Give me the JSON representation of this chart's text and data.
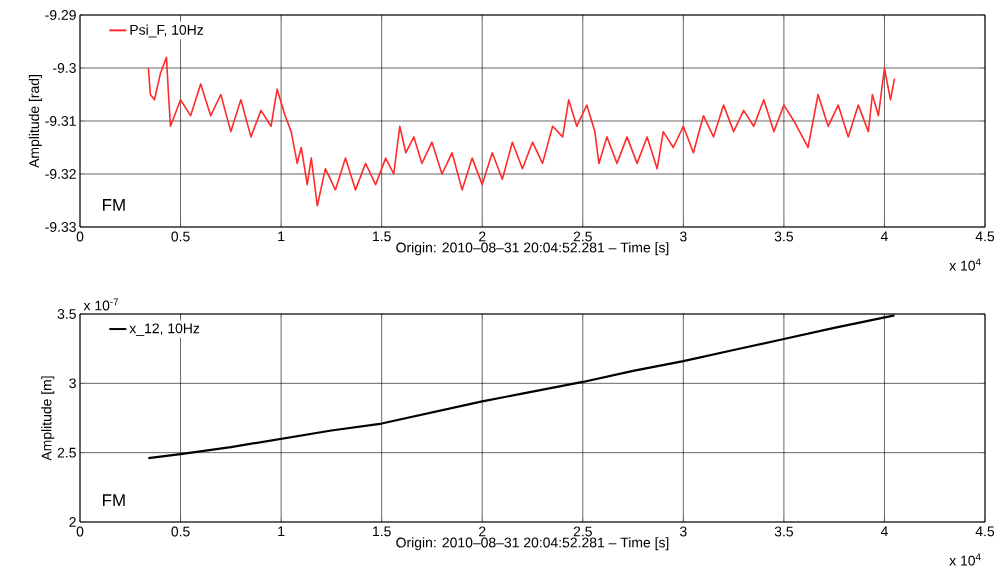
{
  "chart_data": [
    {
      "type": "line",
      "xlabel": "Origin: 2010–08–31 20:04:52.281 – Time  [s]",
      "ylabel": "Amplitude  [rad]",
      "xlim": [
        0,
        4.5
      ],
      "ylim": [
        -9.33,
        -9.29
      ],
      "xticks": [
        0,
        0.5,
        1,
        1.5,
        2,
        2.5,
        3,
        3.5,
        4,
        4.5
      ],
      "yticks": [
        -9.33,
        -9.32,
        -9.31,
        -9.3,
        -9.29
      ],
      "grid": true,
      "legend": "top left",
      "annotations": [
        "FM",
        "x 10$^{4}$"
      ],
      "series": [
        {
          "name": "Psi_F, 10Hz",
          "color": "#ff2a2a",
          "x": [
            0.34,
            0.35,
            0.37,
            0.4,
            0.43,
            0.44,
            0.45,
            0.5,
            0.55,
            0.6,
            0.65,
            0.7,
            0.75,
            0.8,
            0.85,
            0.9,
            0.95,
            0.98,
            1.02,
            1.05,
            1.08,
            1.1,
            1.13,
            1.15,
            1.18,
            1.22,
            1.27,
            1.32,
            1.37,
            1.42,
            1.47,
            1.52,
            1.56,
            1.59,
            1.62,
            1.66,
            1.7,
            1.75,
            1.8,
            1.85,
            1.9,
            1.95,
            2.0,
            2.05,
            2.1,
            2.15,
            2.2,
            2.25,
            2.3,
            2.35,
            2.4,
            2.43,
            2.47,
            2.52,
            2.56,
            2.58,
            2.62,
            2.67,
            2.72,
            2.77,
            2.82,
            2.87,
            2.9,
            2.95,
            3.0,
            3.05,
            3.1,
            3.15,
            3.2,
            3.25,
            3.3,
            3.35,
            3.4,
            3.45,
            3.5,
            3.55,
            3.62,
            3.67,
            3.72,
            3.77,
            3.82,
            3.87,
            3.92,
            3.94,
            3.97,
            4.0,
            4.03,
            4.05
          ],
          "values": [
            -9.3,
            -9.305,
            -9.306,
            -9.301,
            -9.298,
            -9.305,
            -9.311,
            -9.306,
            -9.309,
            -9.303,
            -9.309,
            -9.305,
            -9.312,
            -9.306,
            -9.313,
            -9.308,
            -9.311,
            -9.304,
            -9.309,
            -9.312,
            -9.318,
            -9.315,
            -9.322,
            -9.317,
            -9.326,
            -9.319,
            -9.323,
            -9.317,
            -9.323,
            -9.318,
            -9.322,
            -9.317,
            -9.32,
            -9.311,
            -9.316,
            -9.313,
            -9.318,
            -9.314,
            -9.32,
            -9.316,
            -9.323,
            -9.317,
            -9.322,
            -9.316,
            -9.321,
            -9.314,
            -9.319,
            -9.314,
            -9.318,
            -9.311,
            -9.313,
            -9.306,
            -9.311,
            -9.307,
            -9.312,
            -9.318,
            -9.313,
            -9.318,
            -9.313,
            -9.318,
            -9.313,
            -9.319,
            -9.312,
            -9.315,
            -9.311,
            -9.316,
            -9.309,
            -9.313,
            -9.307,
            -9.312,
            -9.308,
            -9.311,
            -9.306,
            -9.312,
            -9.307,
            -9.31,
            -9.315,
            -9.305,
            -9.311,
            -9.307,
            -9.313,
            -9.307,
            -9.312,
            -9.305,
            -9.309,
            -9.3,
            -9.306,
            -9.302
          ]
        }
      ]
    },
    {
      "type": "line",
      "xlabel": "Origin: 2010–08–31 20:04:52.281 – Time  [s]",
      "ylabel": "Amplitude  [m]",
      "xlim": [
        0,
        4.5
      ],
      "ylim": [
        2,
        3.5
      ],
      "xticks": [
        0,
        0.5,
        1,
        1.5,
        2,
        2.5,
        3,
        3.5,
        4,
        4.5
      ],
      "yticks": [
        2,
        2.5,
        3,
        3.5
      ],
      "grid": true,
      "legend": "top left",
      "annotations": [
        "FM",
        "x 10$^{4}$",
        "x 10$^{-7}$"
      ],
      "series": [
        {
          "name": "x_12, 10Hz",
          "color": "#000000",
          "x": [
            0.34,
            0.5,
            0.75,
            1.0,
            1.25,
            1.5,
            1.75,
            2.0,
            2.25,
            2.5,
            2.75,
            3.0,
            3.25,
            3.5,
            3.75,
            4.05
          ],
          "values": [
            2.46,
            2.49,
            2.54,
            2.6,
            2.66,
            2.71,
            2.79,
            2.87,
            2.94,
            3.01,
            3.09,
            3.16,
            3.24,
            3.32,
            3.4,
            3.49
          ]
        }
      ]
    }
  ]
}
